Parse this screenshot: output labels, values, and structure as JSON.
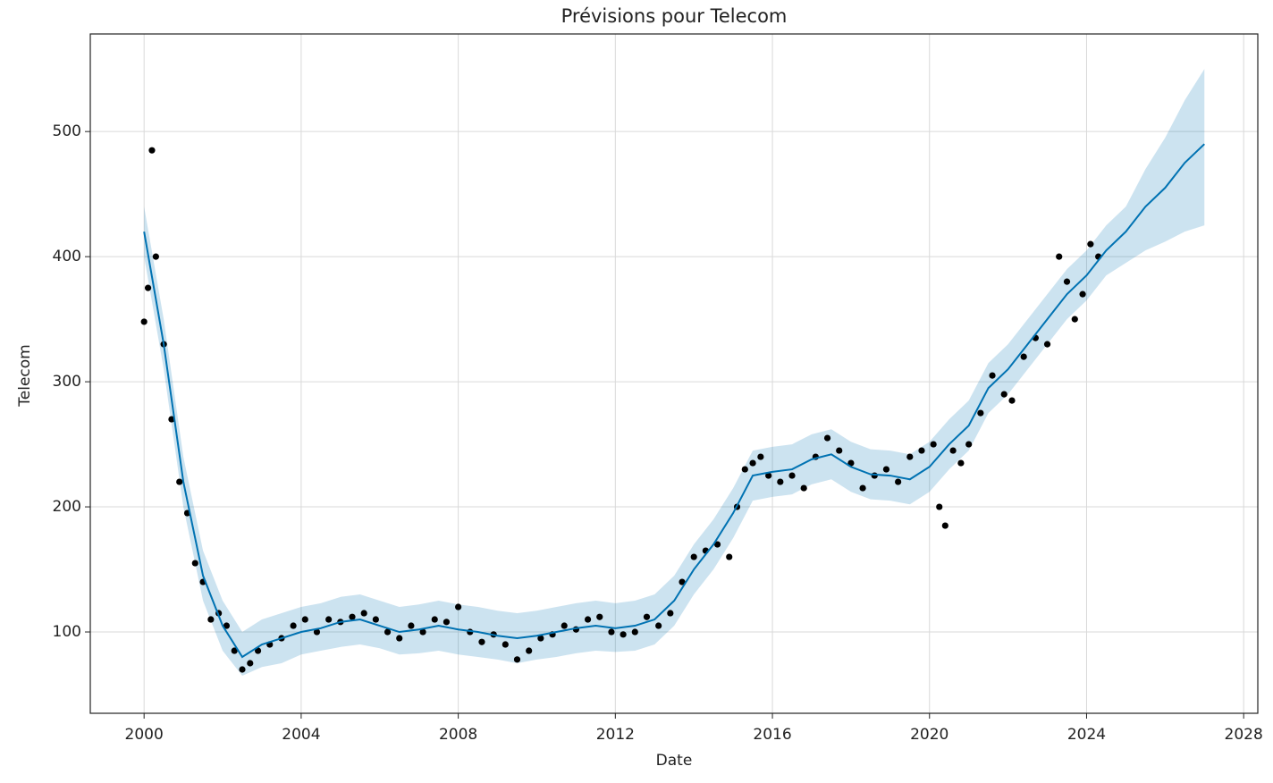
{
  "chart_data": {
    "type": "line",
    "title": "Prévisions pour Telecom",
    "x_label": "Date",
    "y_label": "Telecom",
    "xlim": [
      1998.63,
      2028.36
    ],
    "ylim": [
      35,
      578
    ],
    "xticks": [
      2000,
      2004,
      2008,
      2012,
      2016,
      2020,
      2024,
      2028
    ],
    "yticks": [
      100,
      200,
      300,
      400,
      500
    ],
    "grid": true,
    "observed": {
      "color": "#000000",
      "x": [
        2000.0,
        2000.1,
        2000.2,
        2000.3,
        2000.5,
        2000.7,
        2000.9,
        2001.1,
        2001.3,
        2001.5,
        2001.7,
        2001.9,
        2002.1,
        2002.3,
        2002.5,
        2002.7,
        2002.9,
        2003.2,
        2003.5,
        2003.8,
        2004.1,
        2004.4,
        2004.7,
        2005.0,
        2005.3,
        2005.6,
        2005.9,
        2006.2,
        2006.5,
        2006.8,
        2007.1,
        2007.4,
        2007.7,
        2008.0,
        2008.3,
        2008.6,
        2008.9,
        2009.2,
        2009.5,
        2009.8,
        2010.1,
        2010.4,
        2010.7,
        2011.0,
        2011.3,
        2011.6,
        2011.9,
        2012.2,
        2012.5,
        2012.8,
        2013.1,
        2013.4,
        2013.7,
        2014.0,
        2014.3,
        2014.6,
        2014.9,
        2015.1,
        2015.3,
        2015.5,
        2015.7,
        2015.9,
        2016.2,
        2016.5,
        2016.8,
        2017.1,
        2017.4,
        2017.7,
        2018.0,
        2018.3,
        2018.6,
        2018.9,
        2019.2,
        2019.5,
        2019.8,
        2020.1,
        2020.25,
        2020.4,
        2020.6,
        2020.8,
        2021.0,
        2021.3,
        2021.6,
        2021.9,
        2022.1,
        2022.4,
        2022.7,
        2023.0,
        2023.3,
        2023.5,
        2023.7,
        2023.9,
        2024.1,
        2024.3
      ],
      "values": [
        348,
        375,
        485,
        400,
        330,
        270,
        220,
        195,
        155,
        140,
        110,
        115,
        105,
        85,
        70,
        75,
        85,
        90,
        95,
        105,
        110,
        100,
        110,
        108,
        112,
        115,
        110,
        100,
        95,
        105,
        100,
        110,
        108,
        120,
        100,
        92,
        98,
        90,
        78,
        85,
        95,
        98,
        105,
        102,
        110,
        112,
        100,
        98,
        100,
        112,
        105,
        115,
        140,
        160,
        165,
        170,
        160,
        200,
        230,
        235,
        240,
        225,
        220,
        225,
        215,
        240,
        255,
        245,
        235,
        215,
        225,
        230,
        220,
        240,
        245,
        250,
        200,
        185,
        245,
        235,
        250,
        275,
        305,
        290,
        285,
        320,
        335,
        330,
        400,
        380,
        350,
        370,
        410,
        400
      ]
    },
    "forecast": {
      "color": "#0072B2",
      "x": [
        2000.0,
        2000.5,
        2001.0,
        2001.5,
        2002.0,
        2002.5,
        2003.0,
        2003.5,
        2004.0,
        2004.5,
        2005.0,
        2005.5,
        2006.0,
        2006.5,
        2007.0,
        2007.5,
        2008.0,
        2008.5,
        2009.0,
        2009.5,
        2010.0,
        2010.5,
        2011.0,
        2011.5,
        2012.0,
        2012.5,
        2013.0,
        2013.5,
        2014.0,
        2014.5,
        2015.0,
        2015.5,
        2016.0,
        2016.5,
        2017.0,
        2017.5,
        2018.0,
        2018.5,
        2019.0,
        2019.5,
        2020.0,
        2020.5,
        2021.0,
        2021.5,
        2022.0,
        2022.5,
        2023.0,
        2023.5,
        2024.0,
        2024.5,
        2025.0,
        2025.5,
        2026.0,
        2026.5,
        2027.0
      ],
      "values": [
        420,
        330,
        220,
        145,
        105,
        80,
        90,
        95,
        100,
        103,
        108,
        110,
        105,
        100,
        102,
        105,
        102,
        100,
        97,
        95,
        97,
        100,
        103,
        105,
        103,
        105,
        110,
        125,
        150,
        170,
        195,
        225,
        228,
        230,
        238,
        242,
        232,
        226,
        225,
        222,
        232,
        250,
        265,
        295,
        310,
        330,
        350,
        370,
        385,
        405,
        420,
        440,
        455,
        475,
        490
      ],
      "lower": [
        400,
        310,
        200,
        125,
        85,
        65,
        72,
        75,
        82,
        85,
        88,
        90,
        87,
        82,
        83,
        85,
        82,
        80,
        78,
        75,
        78,
        80,
        83,
        85,
        84,
        85,
        90,
        105,
        130,
        150,
        175,
        205,
        208,
        210,
        218,
        222,
        212,
        206,
        205,
        202,
        212,
        230,
        245,
        275,
        290,
        310,
        330,
        350,
        365,
        385,
        395,
        405,
        412,
        420,
        425
      ],
      "upper": [
        440,
        350,
        240,
        165,
        125,
        100,
        110,
        115,
        120,
        123,
        128,
        130,
        125,
        120,
        122,
        125,
        122,
        120,
        117,
        115,
        117,
        120,
        123,
        125,
        123,
        125,
        130,
        145,
        170,
        190,
        215,
        245,
        248,
        250,
        258,
        262,
        252,
        246,
        245,
        242,
        252,
        270,
        285,
        315,
        330,
        350,
        370,
        390,
        405,
        425,
        440,
        470,
        495,
        525,
        550
      ]
    }
  }
}
